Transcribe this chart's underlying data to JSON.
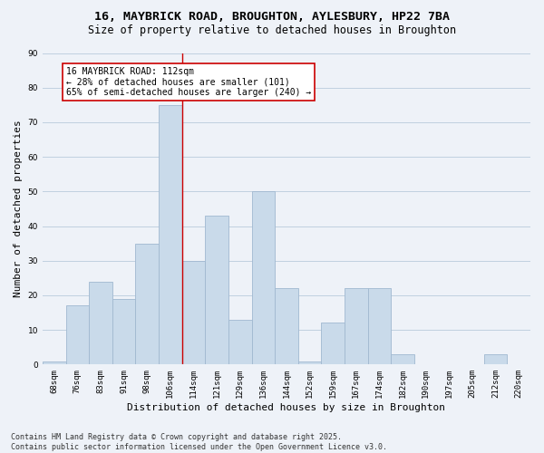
{
  "title_line1": "16, MAYBRICK ROAD, BROUGHTON, AYLESBURY, HP22 7BA",
  "title_line2": "Size of property relative to detached houses in Broughton",
  "xlabel": "Distribution of detached houses by size in Broughton",
  "ylabel": "Number of detached properties",
  "categories": [
    "68sqm",
    "76sqm",
    "83sqm",
    "91sqm",
    "98sqm",
    "106sqm",
    "114sqm",
    "121sqm",
    "129sqm",
    "136sqm",
    "144sqm",
    "152sqm",
    "159sqm",
    "167sqm",
    "174sqm",
    "182sqm",
    "190sqm",
    "197sqm",
    "205sqm",
    "212sqm",
    "220sqm"
  ],
  "values": [
    1,
    17,
    24,
    19,
    35,
    75,
    30,
    43,
    13,
    50,
    22,
    1,
    12,
    22,
    22,
    3,
    0,
    0,
    0,
    3,
    0
  ],
  "bar_color": "#c9daea",
  "bar_edge_color": "#a0b8d0",
  "grid_color": "#c0d0e0",
  "background_color": "#eef2f8",
  "vline_index": 6,
  "vline_color": "#cc0000",
  "annotation_text": "16 MAYBRICK ROAD: 112sqm\n← 28% of detached houses are smaller (101)\n65% of semi-detached houses are larger (240) →",
  "annotation_box_facecolor": "#ffffff",
  "annotation_box_edgecolor": "#cc0000",
  "ylim": [
    0,
    90
  ],
  "yticks": [
    0,
    10,
    20,
    30,
    40,
    50,
    60,
    70,
    80,
    90
  ],
  "footer_line1": "Contains HM Land Registry data © Crown copyright and database right 2025.",
  "footer_line2": "Contains public sector information licensed under the Open Government Licence v3.0.",
  "title_fontsize": 9.5,
  "subtitle_fontsize": 8.5,
  "axis_label_fontsize": 8,
  "tick_fontsize": 6.5,
  "annotation_fontsize": 7,
  "footer_fontsize": 6
}
